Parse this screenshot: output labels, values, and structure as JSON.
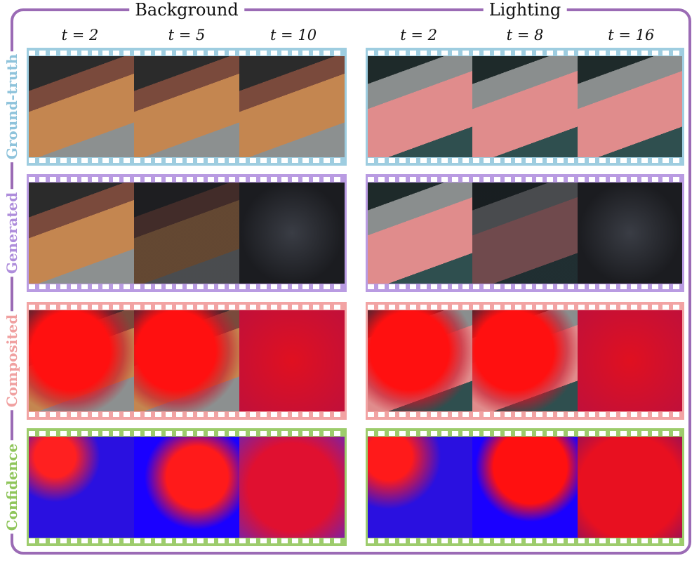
{
  "sections": [
    {
      "title": "Background",
      "columns": [
        "t = 2",
        "t = 5",
        "t = 10"
      ]
    },
    {
      "title": "Lighting",
      "columns": [
        "t = 2",
        "t = 8",
        "t = 16"
      ]
    }
  ],
  "rows": [
    "Ground-truth",
    "Generated",
    "Composited",
    "Confidence"
  ]
}
